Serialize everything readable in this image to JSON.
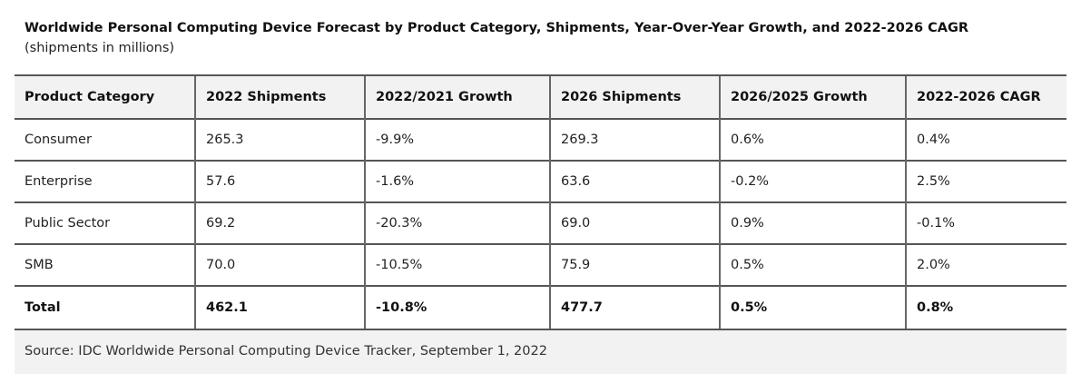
{
  "title": "Worldwide Personal Computing Device Forecast by Product Category, Shipments, Year-Over-Year Growth, and 2022-2026 CAGR",
  "subtitle": "(shipments in millions)",
  "headers": [
    "Product Category",
    "2022 Shipments",
    "2022/2021 Growth",
    "2026 Shipments",
    "2026/2025 Growth",
    "2022-2026 CAGR"
  ],
  "rows": [
    [
      "Consumer",
      "265.3",
      "-9.9%",
      "269.3",
      "0.6%",
      "0.4%"
    ],
    [
      "Enterprise",
      "57.6",
      "-1.6%",
      "63.6",
      "-0.2%",
      "2.5%"
    ],
    [
      "Public Sector",
      "69.2",
      "-20.3%",
      "69.0",
      "0.9%",
      "-0.1%"
    ],
    [
      "SMB",
      "70.0",
      "-10.5%",
      "75.9",
      "0.5%",
      "2.0%"
    ],
    [
      "Total",
      "462.1",
      "-10.8%",
      "477.7",
      "0.5%",
      "0.8%"
    ]
  ],
  "source": "Source: IDC Worldwide Personal Computing Device Tracker, September 1, 2022"
}
